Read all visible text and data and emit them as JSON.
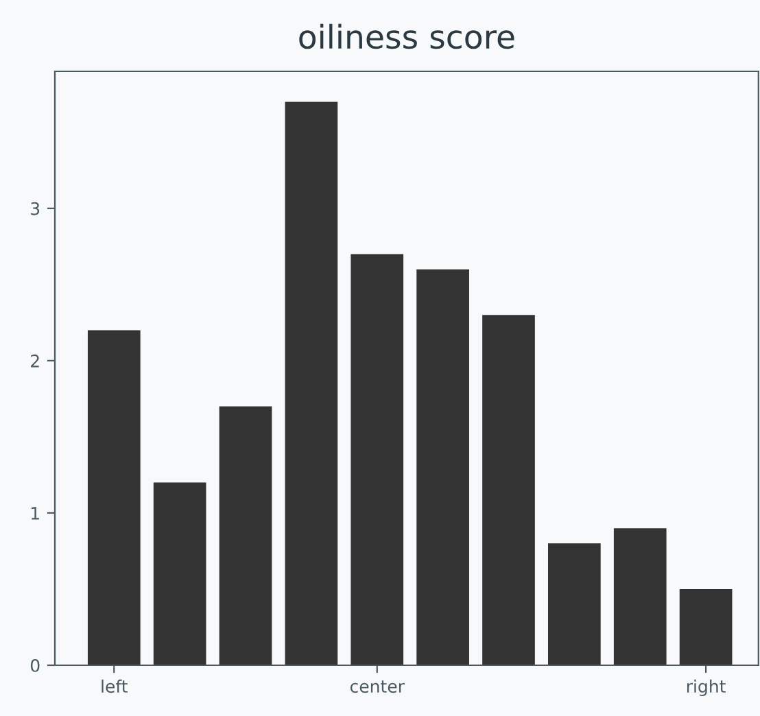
{
  "chart_data": {
    "type": "bar",
    "title": "oiliness score",
    "categories": [
      "left",
      null,
      null,
      null,
      "center",
      null,
      null,
      null,
      null,
      "right"
    ],
    "values": [
      2.2,
      1.2,
      1.7,
      3.7,
      2.7,
      2.6,
      2.3,
      0.8,
      0.9,
      0.5
    ],
    "color": "#333333",
    "ylim": [
      0,
      3.9
    ],
    "yticks": [
      0,
      1,
      2,
      3
    ],
    "grid": false
  }
}
